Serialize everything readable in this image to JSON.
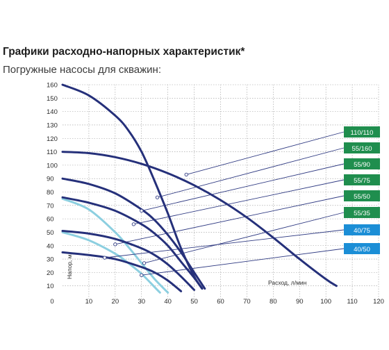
{
  "header": {
    "title": "Графики расходно-напорных характеристик*",
    "subtitle": "Погружные насосы для скважин:"
  },
  "colors": {
    "dark_curve": "#25307a",
    "light_curve": "#8ccfe0",
    "green_tag": "#1f8e4e",
    "blue_tag": "#1b8ed6",
    "grid": "#9a9a9a",
    "leader": "#2f3a82"
  },
  "chart_data": {
    "type": "line",
    "title": "Графики расходно-напорных характеристик*",
    "xlabel": "Расход, л/мин",
    "ylabel": "Напор, м",
    "xlim": [
      0,
      120
    ],
    "ylim": [
      0,
      160
    ],
    "x_ticks": [
      0,
      10,
      20,
      30,
      40,
      50,
      60,
      70,
      80,
      90,
      100,
      110,
      120
    ],
    "y_ticks": [
      10,
      20,
      30,
      40,
      50,
      60,
      70,
      80,
      90,
      100,
      110,
      120,
      130,
      140,
      150,
      160
    ],
    "grid": true,
    "legend": "right, tagged labels with leader lines",
    "series": [
      {
        "name": "110/110",
        "tag_color": "green",
        "curve_color": "dark",
        "points": [
          [
            0,
            110
          ],
          [
            10,
            109
          ],
          [
            20,
            106
          ],
          [
            30,
            101
          ],
          [
            40,
            94
          ],
          [
            50,
            85
          ],
          [
            60,
            74
          ],
          [
            70,
            61
          ],
          [
            80,
            46
          ],
          [
            90,
            30
          ],
          [
            100,
            15
          ],
          [
            104,
            10
          ]
        ],
        "marker": [
          47,
          93
        ]
      },
      {
        "name": "55/160",
        "tag_color": "green",
        "curve_color": "dark",
        "points": [
          [
            0,
            160
          ],
          [
            10,
            152
          ],
          [
            20,
            137
          ],
          [
            25,
            126
          ],
          [
            30,
            110
          ],
          [
            35,
            88
          ],
          [
            40,
            64
          ],
          [
            45,
            38
          ],
          [
            50,
            17
          ],
          [
            53,
            8
          ]
        ],
        "marker": [
          36,
          76
        ]
      },
      {
        "name": "55/90",
        "tag_color": "green",
        "curve_color": "dark",
        "points": [
          [
            0,
            90
          ],
          [
            10,
            86
          ],
          [
            20,
            79
          ],
          [
            30,
            67
          ],
          [
            35,
            59
          ],
          [
            40,
            48
          ],
          [
            45,
            35
          ],
          [
            50,
            20
          ],
          [
            54,
            8
          ]
        ],
        "marker": [
          30,
          66
        ]
      },
      {
        "name": "55/75",
        "tag_color": "green",
        "curve_color": "dark",
        "points": [
          [
            0,
            76
          ],
          [
            10,
            72
          ],
          [
            20,
            66
          ],
          [
            30,
            56
          ],
          [
            35,
            49
          ],
          [
            40,
            40
          ],
          [
            45,
            28
          ],
          [
            50,
            16
          ],
          [
            53,
            8
          ]
        ],
        "marker": [
          27,
          56
        ]
      },
      {
        "name": "55/50",
        "tag_color": "green",
        "curve_color": "dark",
        "points": [
          [
            0,
            51
          ],
          [
            10,
            49
          ],
          [
            20,
            45
          ],
          [
            30,
            38
          ],
          [
            35,
            33
          ],
          [
            40,
            26
          ],
          [
            45,
            17
          ],
          [
            50,
            7
          ]
        ],
        "marker": [
          20,
          41
        ]
      },
      {
        "name": "55/35",
        "tag_color": "green",
        "curve_color": "dark",
        "points": [
          [
            0,
            35
          ],
          [
            10,
            33
          ],
          [
            20,
            30
          ],
          [
            30,
            24
          ],
          [
            35,
            20
          ],
          [
            40,
            14
          ],
          [
            45,
            6
          ]
        ],
        "marker": [
          31,
          27
        ]
      },
      {
        "name": "40/75",
        "tag_color": "blue",
        "curve_color": "light",
        "points": [
          [
            0,
            75
          ],
          [
            10,
            67
          ],
          [
            20,
            50
          ],
          [
            25,
            39
          ],
          [
            30,
            27
          ],
          [
            35,
            15
          ],
          [
            40,
            5
          ]
        ],
        "marker": [
          16,
          31
        ]
      },
      {
        "name": "40/50",
        "tag_color": "blue",
        "curve_color": "light",
        "points": [
          [
            0,
            50
          ],
          [
            10,
            44
          ],
          [
            20,
            34
          ],
          [
            25,
            27
          ],
          [
            30,
            19
          ],
          [
            35,
            9
          ],
          [
            37,
            5
          ]
        ],
        "marker": [
          30,
          18
        ]
      }
    ]
  }
}
